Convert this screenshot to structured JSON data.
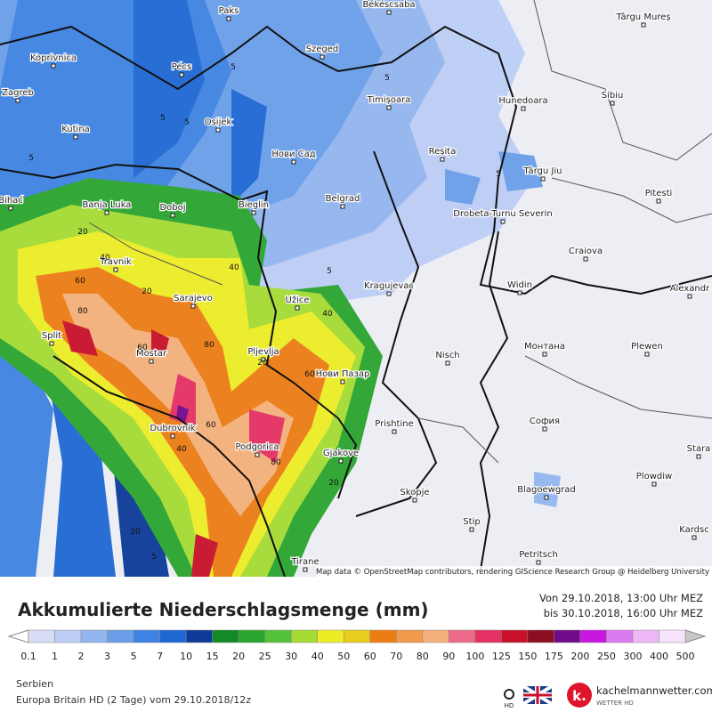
{
  "map": {
    "cities": [
      "Paks",
      "Békéscsaba",
      "Târgu Mureș",
      "Koprivnica",
      "Pécs",
      "Szeged",
      "Zagreb",
      "Sibiu",
      "Hunedoara",
      "Timișoara",
      "Kutina",
      "Osijek",
      "Нови Сад",
      "Reșița",
      "Târgu Jiu",
      "Pitesti",
      "Bihać",
      "Banja Luka",
      "Doboj",
      "Bieglin",
      "Belgrad",
      "Drobeta-Turnu Severin",
      "Craiova",
      "Travnik",
      "Kragujevac",
      "Widin",
      "Alexandr",
      "Sarajevo",
      "Užice",
      "Split",
      "Mostar",
      "Pljevlja",
      "Монтана",
      "Plewen",
      "Nisch",
      "Нови Пазар",
      "София",
      "Dubrovnik",
      "Prishtine",
      "Podgorica",
      "Gjakove",
      "Stara",
      "Plowdiw",
      "Skopje",
      "Blagoewgrad",
      "Stip",
      "Kardsc",
      "Tirane",
      "Petritsch"
    ],
    "contour_labels": [
      "5",
      "5",
      "5",
      "5",
      "5",
      "5",
      "20",
      "40",
      "60",
      "80",
      "40",
      "60",
      "40",
      "80",
      "60",
      "40",
      "20",
      "20",
      "60",
      "80",
      "20",
      "5",
      "5",
      "20"
    ],
    "attribution": "Map data © OpenStreetMap contributors, rendering GIScience Research Group @ Heidelberg University"
  },
  "header": {
    "title": "Akkumulierte Niederschlagsmenge (mm)",
    "from": "Von 29.10.2018, 13:00 Uhr MEZ",
    "to": "bis 30.10.2018, 16:00 Uhr MEZ"
  },
  "legend": {
    "labels": [
      0.1,
      1,
      2,
      3,
      5,
      7,
      10,
      15,
      20,
      25,
      30,
      40,
      50,
      60,
      70,
      80,
      90,
      100,
      125,
      150,
      175,
      200,
      250,
      300,
      400,
      500
    ],
    "colors": [
      "#d8dcf4",
      "#bccdf4",
      "#93b5ef",
      "#6a9eea",
      "#3f83e2",
      "#1f68d4",
      "#0d3a98",
      "#138a26",
      "#2aa52e",
      "#55c23b",
      "#a5dc33",
      "#eded25",
      "#e8cc1e",
      "#ec7d14",
      "#f29a4c",
      "#f4b07a",
      "#ee6a8a",
      "#e43062",
      "#c8102a",
      "#8c0c20",
      "#700a8a",
      "#c818e0",
      "#dc7af0",
      "#eeb8f6",
      "#f6e4fa"
    ]
  },
  "footer": {
    "region": "Serbien",
    "model": "Europa Britain HD (2 Tage) vom 29.10.2018/12z",
    "site": "kachelmannwetter.com",
    "tagline": "WETTER HD",
    "hd": "HD"
  }
}
